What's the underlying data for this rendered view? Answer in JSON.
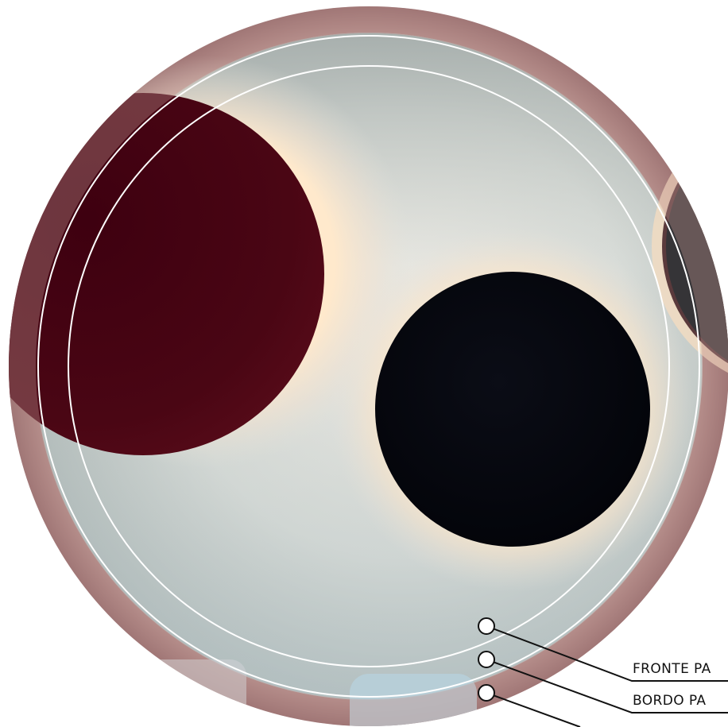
{
  "image": {
    "subject": "photo of circular wall lamps with warm backlight halo inside a circular frame"
  },
  "colors": {
    "outer_ring": "#9c6f70",
    "wall_light": "#dde0dc",
    "wall_shadow": "#8f9c9b",
    "halo": "#ffe8c8",
    "maroon_disc": "#4a0614",
    "black_disc": "#05060c",
    "guide_lines": "#ffffff",
    "callout_line": "#111111"
  },
  "callouts": [
    {
      "label": "FRONTE PA"
    },
    {
      "label": "BORDO PA"
    },
    {
      "label": ""
    }
  ]
}
